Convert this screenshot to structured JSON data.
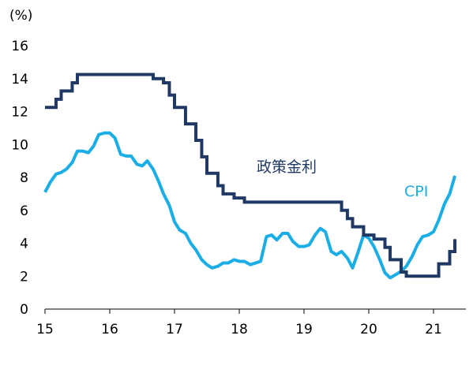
{
  "chart_data": {
    "type": "line",
    "ylabel": "(%)",
    "ylim": [
      0,
      16
    ],
    "yticks": [
      0,
      2,
      4,
      6,
      8,
      10,
      12,
      14,
      16
    ],
    "xlim": [
      15,
      21.5
    ],
    "xticks": [
      {
        "value": 15,
        "label": "15"
      },
      {
        "value": 16,
        "label": "16"
      },
      {
        "value": 17,
        "label": "17"
      },
      {
        "value": 18,
        "label": "18"
      },
      {
        "value": 19,
        "label": "19"
      },
      {
        "value": 20,
        "label": "20"
      },
      {
        "value": 21,
        "label": "21"
      }
    ],
    "grid": false,
    "series": [
      {
        "name": "政策金利",
        "color": "#1f3864",
        "step": true,
        "x": [
          15.0,
          15.17,
          15.25,
          15.42,
          15.5,
          16.67,
          16.83,
          16.92,
          17.0,
          17.17,
          17.33,
          17.42,
          17.5,
          17.67,
          17.75,
          17.92,
          18.08,
          18.17,
          19.58,
          19.67,
          19.75,
          19.92,
          20.08,
          20.25,
          20.33,
          20.5,
          20.58,
          20.75,
          20.83,
          21.08,
          21.25,
          21.33
        ],
        "values": [
          12.25,
          12.75,
          13.25,
          13.75,
          14.25,
          14.0,
          13.75,
          13.0,
          12.25,
          11.25,
          10.25,
          9.25,
          8.25,
          7.5,
          7.0,
          6.75,
          6.5,
          6.5,
          6.0,
          5.5,
          5.0,
          4.5,
          4.25,
          3.75,
          3.0,
          2.25,
          2.0,
          2.0,
          2.0,
          2.75,
          3.5,
          4.25
        ]
      },
      {
        "name": "CPI",
        "color": "#1aade6",
        "step": false,
        "x": [
          15.0,
          15.08,
          15.17,
          15.25,
          15.33,
          15.42,
          15.5,
          15.58,
          15.67,
          15.75,
          15.83,
          15.92,
          16.0,
          16.08,
          16.17,
          16.25,
          16.33,
          16.42,
          16.5,
          16.58,
          16.67,
          16.75,
          16.83,
          16.92,
          17.0,
          17.08,
          17.17,
          17.25,
          17.33,
          17.42,
          17.5,
          17.58,
          17.67,
          17.75,
          17.83,
          17.92,
          18.0,
          18.08,
          18.17,
          18.25,
          18.33,
          18.42,
          18.5,
          18.58,
          18.67,
          18.75,
          18.83,
          18.92,
          19.0,
          19.08,
          19.17,
          19.25,
          19.33,
          19.42,
          19.5,
          19.58,
          19.67,
          19.75,
          19.83,
          19.92,
          20.0,
          20.08,
          20.17,
          20.25,
          20.33,
          20.42,
          20.5,
          20.58,
          20.67,
          20.75,
          20.83,
          20.92,
          21.0,
          21.08,
          21.17,
          21.25,
          21.33
        ],
        "values": [
          7.1,
          7.7,
          8.2,
          8.3,
          8.5,
          8.9,
          9.6,
          9.6,
          9.5,
          9.9,
          10.6,
          10.7,
          10.7,
          10.4,
          9.4,
          9.3,
          9.3,
          8.8,
          8.7,
          9.0,
          8.5,
          7.8,
          7.0,
          6.3,
          5.3,
          4.8,
          4.6,
          4.0,
          3.6,
          3.0,
          2.7,
          2.5,
          2.6,
          2.8,
          2.8,
          3.0,
          2.9,
          2.9,
          2.7,
          2.8,
          2.9,
          4.4,
          4.5,
          4.2,
          4.6,
          4.6,
          4.1,
          3.8,
          3.8,
          3.9,
          4.5,
          4.9,
          4.7,
          3.5,
          3.3,
          3.5,
          3.1,
          2.5,
          3.4,
          4.5,
          4.3,
          3.8,
          3.0,
          2.2,
          1.9,
          2.1,
          2.3,
          2.6,
          3.2,
          3.9,
          4.4,
          4.5,
          4.7,
          5.4,
          6.4,
          7.0,
          8.1
        ]
      }
    ]
  }
}
